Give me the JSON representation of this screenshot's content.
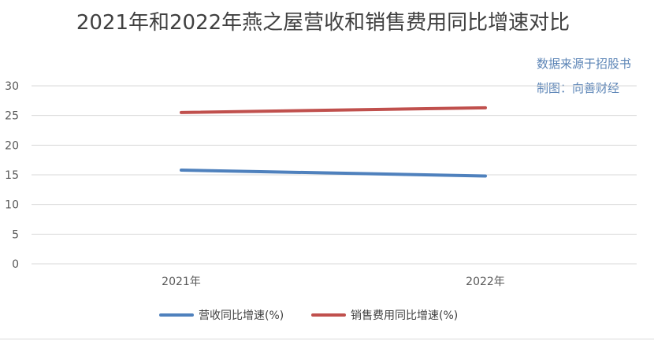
{
  "chart_data": {
    "type": "line",
    "title": "2021年和2022年燕之屋营收和销售费用同比增速对比",
    "source_lines": [
      "数据来源于招股书",
      "制图：向善财经"
    ],
    "categories": [
      "2021年",
      "2022年"
    ],
    "series": [
      {
        "name": "营收同比增速(%)",
        "values": [
          15.8,
          14.8
        ],
        "color": "#4f81bd"
      },
      {
        "name": "销售费用同比增速(%)",
        "values": [
          25.5,
          26.3
        ],
        "color": "#c0504d"
      }
    ],
    "ylim": [
      0,
      30
    ],
    "yticks": [
      0,
      5,
      10,
      15,
      20,
      25,
      30
    ],
    "grid": true,
    "legend_position": "bottom"
  }
}
